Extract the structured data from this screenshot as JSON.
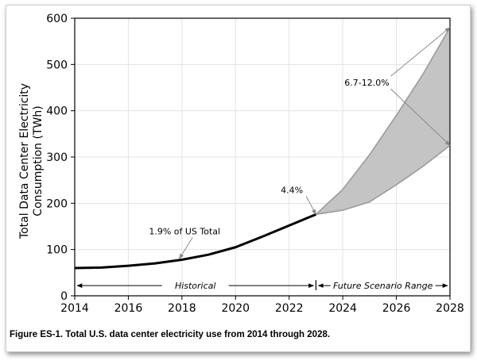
{
  "chart_data": {
    "type": "line",
    "title": "",
    "xlabel": "",
    "ylabel": "Total Data Center Electricity Consumption (TWh)",
    "ylabel_lines": [
      "Total Data Center Electricity",
      "Consumption (TWh)"
    ],
    "xlim": [
      2014,
      2028
    ],
    "ylim": [
      0,
      600
    ],
    "xticks": [
      2014,
      2016,
      2018,
      2020,
      2022,
      2024,
      2026,
      2028
    ],
    "yticks": [
      0,
      100,
      200,
      300,
      400,
      500,
      600
    ],
    "grid": true,
    "series": [
      {
        "name": "Historical",
        "style": "solid-black",
        "x": [
          2014,
          2015,
          2016,
          2017,
          2018,
          2019,
          2020,
          2021,
          2022,
          2023
        ],
        "y": [
          60,
          61,
          65,
          70,
          78,
          89,
          105,
          128,
          152,
          176
        ]
      },
      {
        "name": "Future Scenario Range (high)",
        "style": "gray-band-upper",
        "x": [
          2023,
          2024,
          2025,
          2026,
          2027,
          2028
        ],
        "y": [
          176,
          230,
          305,
          390,
          480,
          580
        ]
      },
      {
        "name": "Future Scenario Range (low)",
        "style": "gray-band-lower",
        "x": [
          2023,
          2024,
          2025,
          2026,
          2027,
          2028
        ],
        "y": [
          176,
          185,
          203,
          240,
          280,
          325
        ]
      }
    ],
    "annotations": [
      {
        "text": "1.9% of US Total",
        "x": 2018.1,
        "y": 133,
        "arrow_to": [
          2017.9,
          80
        ]
      },
      {
        "text": "4.4%",
        "x": 2022.1,
        "y": 222,
        "arrow_to": [
          2023,
          176
        ]
      },
      {
        "text": "6.7-12.0%",
        "x": 2024.9,
        "y": 454,
        "arrow_to": [
          [
            2028,
            580
          ],
          [
            2028,
            325
          ]
        ]
      }
    ],
    "ranges": [
      {
        "label": "Historical",
        "x": [
          2014,
          2023
        ],
        "y": 22
      },
      {
        "label": "Future Scenario Range",
        "x": [
          2023,
          2028
        ],
        "y": 22
      }
    ],
    "colors": {
      "historical": "#000000",
      "band_fill": "#c4c4c4",
      "band_edge": "#9b9b9b",
      "grid": "#e3e3e3"
    }
  },
  "caption": "Figure ES-1. Total U.S. data center electricity use from 2014 through 2028."
}
